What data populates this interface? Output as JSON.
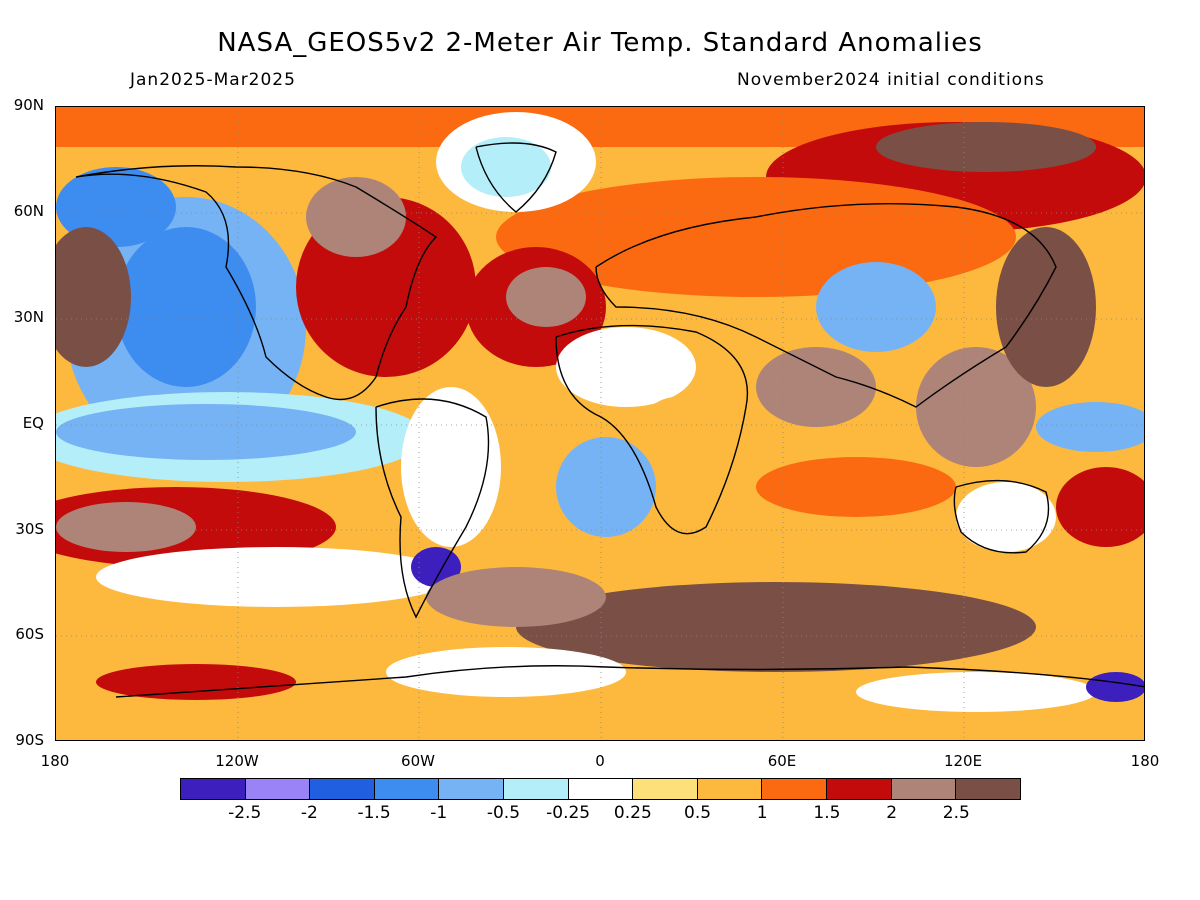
{
  "title": "NASA_GEOS5v2 2-Meter Air Temp. Standard Anomalies",
  "period": "Jan2025-Mar2025",
  "initial_conditions": "November2024 initial conditions",
  "lat_labels": [
    "90N",
    "60N",
    "30N",
    "EQ",
    "30S",
    "60S",
    "90S"
  ],
  "lon_labels": [
    "180",
    "120W",
    "60W",
    "0",
    "60E",
    "120E",
    "180"
  ],
  "colorbar": {
    "colors": [
      "#3d1fbd",
      "#9a82f7",
      "#1f5fe0",
      "#3d8cf0",
      "#76b3f5",
      "#b4eef9",
      "#ffffff",
      "#fde07a",
      "#fcb93e",
      "#fb6a10",
      "#c40b0b",
      "#ad8477",
      "#7a4f45"
    ],
    "labels": [
      "-2.5",
      "-2",
      "-1.5",
      "-1",
      "-0.5",
      "-0.25",
      "0.25",
      "0.5",
      "1",
      "1.5",
      "2",
      "2.5"
    ]
  }
}
